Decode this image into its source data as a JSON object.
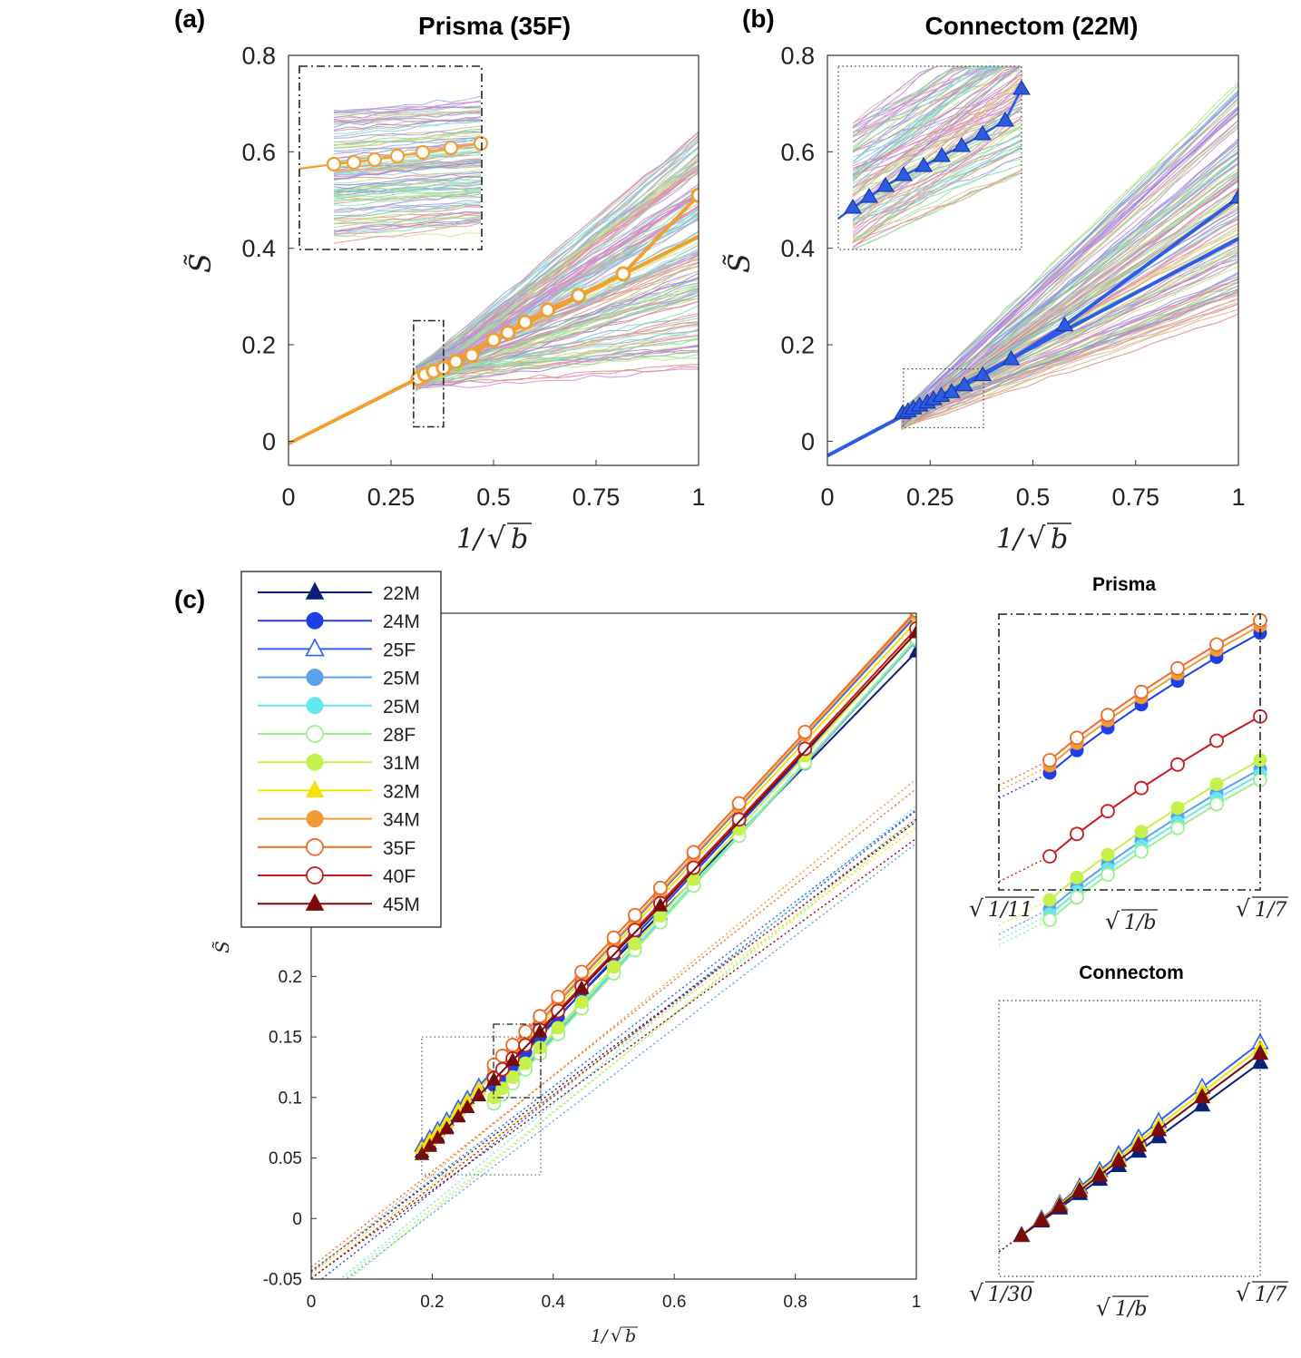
{
  "chart_data": [
    {
      "id": "a",
      "panel_label": "(a)",
      "type": "line",
      "title": "Prisma (35F)",
      "xlabel": "1/√b",
      "ylabel": "S̃",
      "xlim": [
        0,
        1
      ],
      "ylim": [
        -0.05,
        0.8
      ],
      "xticks": [
        0,
        0.25,
        0.5,
        0.75,
        1
      ],
      "xtick_labels": [
        "0",
        "0.25",
        "0.5",
        "0.75",
        "1"
      ],
      "yticks": [
        0,
        0.2,
        0.4,
        0.6,
        0.8
      ],
      "ytick_labels": [
        "0",
        "0.2",
        "0.4",
        "0.6",
        "0.8"
      ],
      "accent_color": "#F0A030",
      "series": [
        {
          "name": "35F",
          "marker": "open-circle",
          "x": [
            0.316,
            0.333,
            0.354,
            0.378,
            0.408,
            0.447,
            0.5,
            0.535,
            0.577,
            0.632,
            0.707,
            0.816,
            1.0
          ],
          "y": [
            0.13,
            0.138,
            0.145,
            0.152,
            0.165,
            0.178,
            0.21,
            0.225,
            0.247,
            0.272,
            0.302,
            0.347,
            0.51
          ]
        }
      ],
      "fit": {
        "intercept": -0.005,
        "slope": 0.43
      },
      "inset_range": {
        "x": [
          0.3,
          0.38
        ],
        "y": [
          0.03,
          0.25
        ]
      }
    },
    {
      "id": "b",
      "panel_label": "(b)",
      "type": "line",
      "title": "Connectom (22M)",
      "xlabel": "1/√b",
      "ylabel": "S̃",
      "xlim": [
        0,
        1
      ],
      "ylim": [
        -0.05,
        0.8
      ],
      "xticks": [
        0,
        0.25,
        0.5,
        0.75,
        1
      ],
      "xtick_labels": [
        "0",
        "0.25",
        "0.5",
        "0.75",
        "1"
      ],
      "yticks": [
        0,
        0.2,
        0.4,
        0.6,
        0.8
      ],
      "ytick_labels": [
        "0",
        "0.2",
        "0.4",
        "0.6",
        "0.8"
      ],
      "accent_color": "#2D5BE3",
      "series": [
        {
          "name": "22M",
          "marker": "filled-triangle",
          "x": [
            0.183,
            0.196,
            0.209,
            0.224,
            0.243,
            0.258,
            0.277,
            0.302,
            0.333,
            0.378,
            0.447,
            0.577,
            1.0
          ],
          "y": [
            0.058,
            0.062,
            0.068,
            0.074,
            0.08,
            0.087,
            0.094,
            0.102,
            0.116,
            0.137,
            0.17,
            0.24,
            0.505
          ]
        }
      ],
      "fit": {
        "intercept": -0.03,
        "slope": 0.45
      },
      "inset_range": {
        "x": [
          0.18,
          0.38
        ],
        "y": [
          0.03,
          0.15
        ]
      }
    },
    {
      "id": "c",
      "panel_label": "(c)",
      "type": "line",
      "title": "",
      "xlabel": "1/√b",
      "ylabel": "S̃",
      "xlim": [
        0,
        1
      ],
      "ylim": [
        -0.05,
        0.5
      ],
      "xticks": [
        0,
        0.2,
        0.4,
        0.6,
        0.8,
        1
      ],
      "xtick_labels": [
        "0",
        "0.2",
        "0.4",
        "0.6",
        "0.8",
        "1"
      ],
      "yticks": [
        -0.05,
        0,
        0.05,
        0.1,
        0.15,
        0.2
      ],
      "ytick_labels": [
        "-0.05",
        "0",
        "0.05",
        "0.1",
        "0.15",
        "0.2"
      ],
      "connectom_x": [
        0.183,
        0.196,
        0.209,
        0.224,
        0.243,
        0.258,
        0.277,
        0.302,
        0.333,
        0.378,
        0.447,
        0.577,
        1.0
      ],
      "prisma_x": [
        0.302,
        0.316,
        0.333,
        0.354,
        0.378,
        0.408,
        0.447,
        0.5,
        0.535,
        0.577,
        0.632,
        0.707,
        0.816,
        1.0
      ],
      "series": [
        {
          "name": "22M",
          "color": "#0A1F7A",
          "marker": "filled-triangle",
          "scanner": "connectom",
          "y0": 0.055,
          "y1": 0.458
        },
        {
          "name": "24M",
          "color": "#1F3FE6",
          "marker": "filled-circle",
          "scanner": "prisma",
          "y0": 0.11,
          "y1": 0.477
        },
        {
          "name": "25F",
          "color": "#2F63E8",
          "marker": "open-triangle",
          "scanner": "connectom",
          "y0": 0.06,
          "y1": 0.488
        },
        {
          "name": "25M",
          "color": "#5AA2EE",
          "marker": "filled-circle",
          "scanner": "prisma",
          "y0": 0.097,
          "y1": 0.47
        },
        {
          "name": "25M",
          "color": "#66E6F2",
          "marker": "filled-circle",
          "scanner": "prisma",
          "y0": 0.099,
          "y1": 0.471
        },
        {
          "name": "28F",
          "color": "#9AF08E",
          "marker": "open-circle",
          "scanner": "prisma",
          "y0": 0.095,
          "y1": 0.472
        },
        {
          "name": "31M",
          "color": "#C6F04A",
          "marker": "filled-circle",
          "scanner": "prisma",
          "y0": 0.1,
          "y1": 0.478
        },
        {
          "name": "32M",
          "color": "#F6E20A",
          "marker": "filled-triangle",
          "scanner": "connectom",
          "y0": 0.058,
          "y1": 0.483
        },
        {
          "name": "34M",
          "color": "#F09A3A",
          "marker": "filled-circle",
          "scanner": "prisma",
          "y0": 0.123,
          "y1": 0.493
        },
        {
          "name": "35F",
          "color": "#F06A28",
          "marker": "open-circle",
          "scanner": "prisma",
          "y0": 0.127,
          "y1": 0.495
        },
        {
          "name": "40F",
          "color": "#C8191E",
          "marker": "open-circle",
          "scanner": "prisma",
          "y0": 0.116,
          "y1": 0.48
        },
        {
          "name": "45M",
          "color": "#7A0A0A",
          "marker": "filled-triangle",
          "scanner": "connectom",
          "y0": 0.053,
          "y1": 0.474
        }
      ]
    }
  ],
  "insets_c": {
    "prisma": {
      "title": "Prisma",
      "x_left": "1/11",
      "x_mid": "1/b",
      "x_right": "1/7"
    },
    "connectom": {
      "title": "Connectom",
      "x_left": "1/30",
      "x_mid": "1/b",
      "x_right": "1/7"
    }
  },
  "math": {
    "sqrt": "√",
    "ylabel_glyph": "S̃",
    "xlabel_prefix": "1/",
    "xlabel_var": "b"
  }
}
